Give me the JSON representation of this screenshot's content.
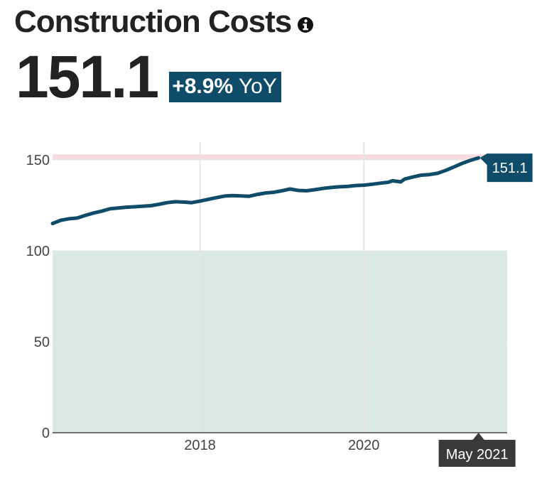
{
  "header": {
    "title": "Construction Costs",
    "info_icon": "info-icon",
    "value": "151.1",
    "yoy_change": "+8.9%",
    "yoy_suffix": "YoY"
  },
  "colors": {
    "line": "#0f4c6a",
    "badge": "#0f4c6a",
    "upper_band": "#f6dcdf",
    "lower_band": "#d9e9e2",
    "tooltip_bg": "#3a3a3a"
  },
  "tooltips": {
    "value_label": "151.1",
    "date_label": "May 2021"
  },
  "chart_data": {
    "type": "line",
    "title": "Construction Costs",
    "xlabel": "",
    "ylabel": "",
    "xlim": [
      2016.2,
      2021.75
    ],
    "ylim": [
      0,
      152
    ],
    "y_ticks": [
      0,
      50,
      100,
      150
    ],
    "x_ticks": [
      2018,
      2020
    ],
    "x_tick_labels": [
      "2018",
      "2020"
    ],
    "grid": true,
    "bands": [
      {
        "from": 0,
        "to": 100,
        "color": "#d9e9e2"
      },
      {
        "from": 150,
        "to": 153,
        "color": "#f6dcdf"
      }
    ],
    "series": [
      {
        "x": [
          2016.2,
          2016.3,
          2016.4,
          2016.5,
          2016.6,
          2016.7,
          2016.8,
          2016.9,
          2017.0,
          2017.1,
          2017.2,
          2017.3,
          2017.4,
          2017.5,
          2017.6,
          2017.7,
          2017.8,
          2017.9,
          2018.0,
          2018.1,
          2018.2,
          2018.3,
          2018.4,
          2018.5,
          2018.6,
          2018.7,
          2018.8,
          2018.9,
          2019.0,
          2019.1,
          2019.2,
          2019.3,
          2019.4,
          2019.5,
          2019.6,
          2019.7,
          2019.8,
          2019.9,
          2020.0,
          2020.1,
          2020.2,
          2020.3,
          2020.35,
          2020.45,
          2020.5,
          2020.6,
          2020.7,
          2020.8,
          2020.9,
          2021.0,
          2021.1,
          2021.2,
          2021.3,
          2021.4
        ],
        "y": [
          115,
          116.8,
          117.6,
          118,
          119.5,
          120.8,
          121.8,
          123.1,
          123.5,
          124,
          124.2,
          124.5,
          124.8,
          125.6,
          126.5,
          127,
          126.8,
          126.5,
          127.3,
          128.3,
          129.2,
          130.1,
          130.4,
          130.2,
          130,
          131,
          131.8,
          132.2,
          133,
          134,
          133.2,
          133,
          133.6,
          134.3,
          134.8,
          135.2,
          135.4,
          135.9,
          136.1,
          136.6,
          137.2,
          137.7,
          138.5,
          137.9,
          139.5,
          140.6,
          141.6,
          141.9,
          142.6,
          144.2,
          146.1,
          148.1,
          149.7,
          151.1
        ]
      }
    ]
  }
}
